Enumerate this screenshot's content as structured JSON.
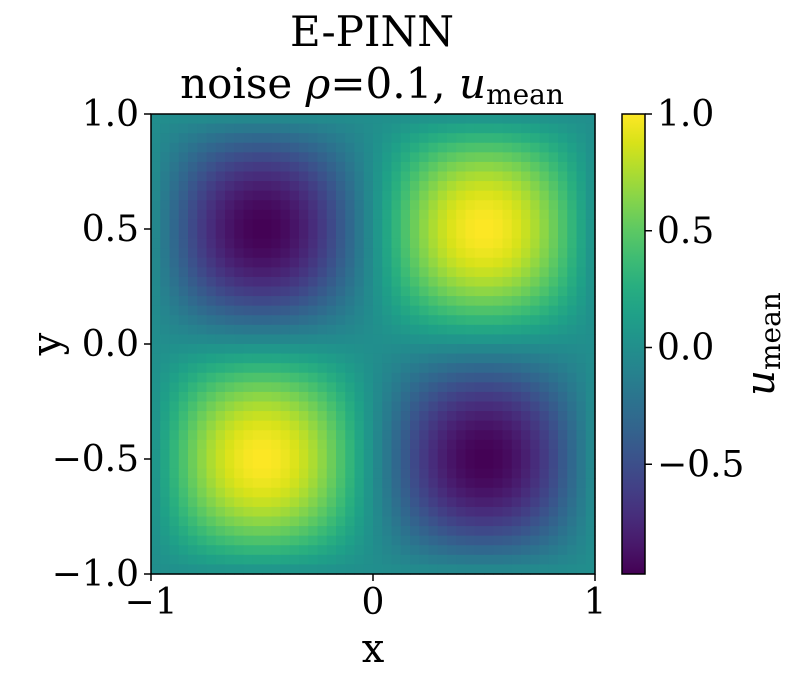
{
  "chart_data": {
    "type": "heatmap",
    "title_line1": "E-PINN",
    "title_line2_prefix": "noise ",
    "title_line2_rho": "ρ",
    "title_line2_eq": "=0.1, ",
    "title_line2_u": "u",
    "title_line2_sub": "mean",
    "xlabel": "x",
    "ylabel": "y",
    "xlim": [
      -1,
      1
    ],
    "ylim": [
      -1,
      1
    ],
    "x_ticks": [
      {
        "value": -1,
        "label": "−1"
      },
      {
        "value": 0,
        "label": "0"
      },
      {
        "value": 1,
        "label": "1"
      }
    ],
    "y_ticks": [
      {
        "value": 1.0,
        "label": "1.0"
      },
      {
        "value": 0.5,
        "label": "0.5"
      },
      {
        "value": 0.0,
        "label": "0.0"
      },
      {
        "value": -0.5,
        "label": "−0.5"
      },
      {
        "value": -1.0,
        "label": "−1.0"
      }
    ],
    "colorbar": {
      "label_u": "u",
      "label_sub": "mean",
      "vmin": -0.97,
      "vmax": 1.0,
      "colormap": "viridis",
      "ticks": [
        {
          "value": 1.0,
          "label": "1.0"
        },
        {
          "value": 0.5,
          "label": "0.5"
        },
        {
          "value": 0.0,
          "label": "0.0"
        },
        {
          "value": -0.5,
          "label": "−0.5"
        }
      ]
    },
    "field": "u(x,y) = sin(pi x) * sin(pi y)",
    "grid_resolution": 48,
    "extrema": [
      {
        "x": 0.5,
        "y": 0.5,
        "value": 1.0
      },
      {
        "x": -0.5,
        "y": -0.5,
        "value": 1.0
      },
      {
        "x": -0.5,
        "y": 0.5,
        "value": -0.97
      },
      {
        "x": 0.5,
        "y": -0.5,
        "value": -0.97
      }
    ],
    "grid": false
  }
}
